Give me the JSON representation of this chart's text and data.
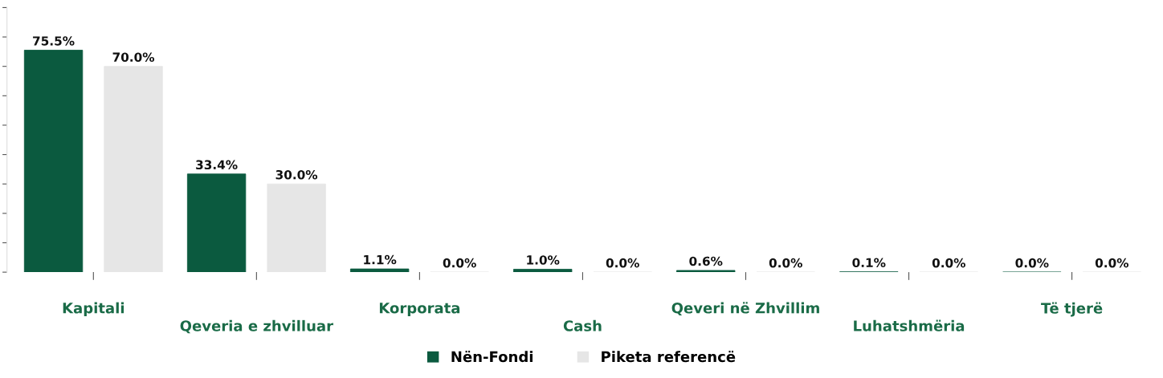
{
  "chart_data": {
    "type": "bar",
    "categories": [
      "Kapitali",
      "Qeveria e zhvilluar",
      "Korporata",
      "Cash",
      "Qeveri në Zhvillim",
      "Luhatshmëria",
      "Të tjerë"
    ],
    "series": [
      {
        "name": "Nën-Fondi",
        "color": "#0b5a3f",
        "values": [
          75.5,
          33.4,
          1.1,
          1.0,
          0.6,
          0.1,
          0.0
        ],
        "value_labels": [
          "75.5%",
          "33.4%",
          "1.1%",
          "1.0%",
          "0.6%",
          "0.1%",
          "0.0%"
        ]
      },
      {
        "name": "Piketa referencë",
        "color": "#e6e6e6",
        "values": [
          70.0,
          30.0,
          0.0,
          0.0,
          0.0,
          0.0,
          0.0
        ],
        "value_labels": [
          "70.0%",
          "30.0%",
          "0.0%",
          "0.0%",
          "0.0%",
          "0.0%",
          "0.0%"
        ]
      }
    ],
    "ylim": [
      0,
      90
    ],
    "yticks": [
      {
        "value": 0,
        "label": null
      },
      {
        "value": 10,
        "label": null
      },
      {
        "value": 20,
        "label": null
      },
      {
        "value": 30,
        "label": null
      },
      {
        "value": 40,
        "label": null
      },
      {
        "value": 50,
        "label": null
      },
      {
        "value": 60,
        "label": null
      },
      {
        "value": 70,
        "label": null
      },
      {
        "value": 80,
        "label": null
      },
      {
        "value": 90,
        "label": null
      }
    ],
    "tick_labels": "x",
    "grid": false,
    "legend": "bottom"
  }
}
